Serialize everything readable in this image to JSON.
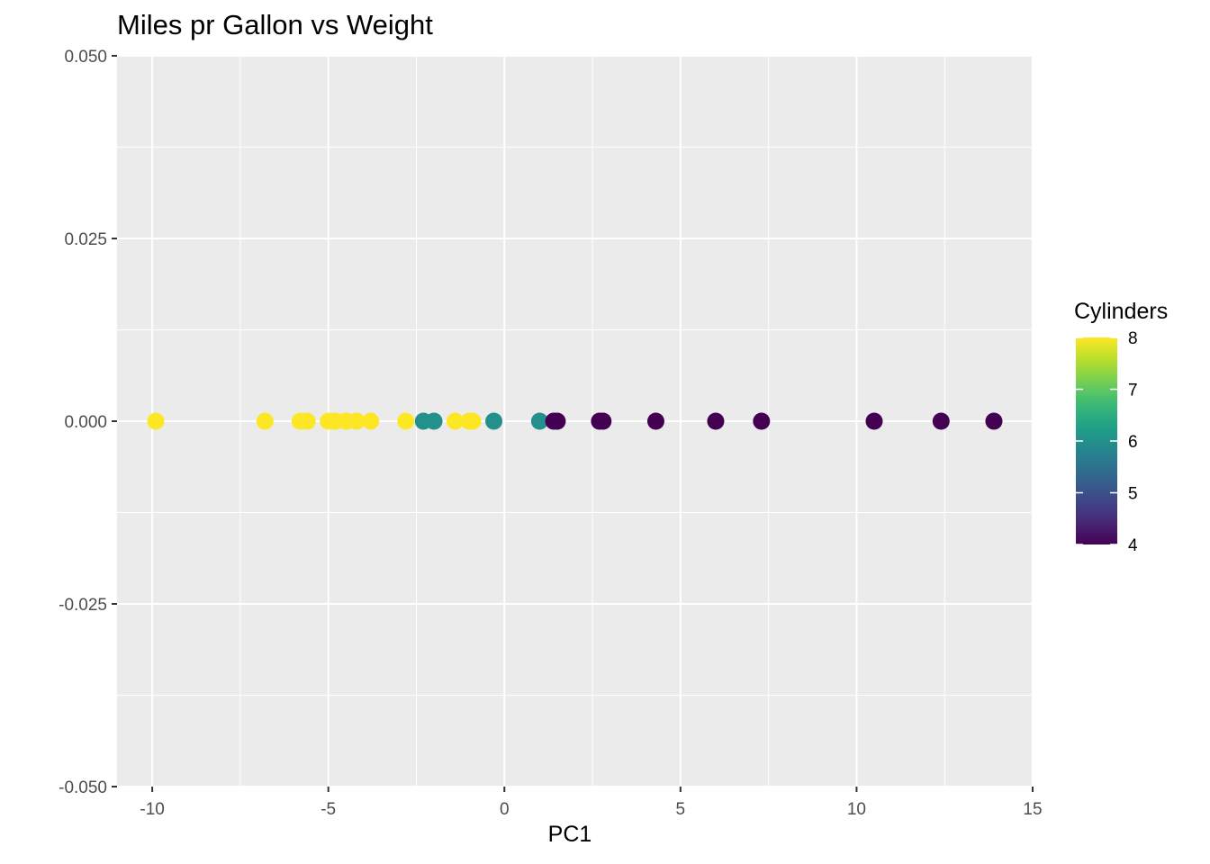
{
  "chart_data": {
    "type": "scatter",
    "title": "Miles pr Gallon vs Weight",
    "xlabel": "PC1",
    "ylabel": "",
    "xlim": [
      -11,
      15
    ],
    "ylim": [
      -0.05,
      0.05
    ],
    "x_ticks": [
      -10,
      -5,
      0,
      5,
      10,
      15
    ],
    "y_ticks": [
      -0.05,
      -0.025,
      0.0,
      0.025,
      0.05
    ],
    "x_tick_labels": [
      "-10",
      "-5",
      "0",
      "5",
      "10",
      "15"
    ],
    "y_tick_labels": [
      "-0.050",
      "-0.025",
      "0.000",
      "0.025",
      "0.050"
    ],
    "grid": true,
    "background": "#ebebeb",
    "legend": {
      "title": "Cylinders",
      "type": "colorbar",
      "placement": "right",
      "min": 4,
      "max": 8,
      "ticks": [
        4,
        5,
        6,
        7,
        8
      ],
      "tick_labels": [
        "4",
        "5",
        "6",
        "7",
        "8"
      ],
      "colors": [
        "#440154",
        "#3b528b",
        "#21908c",
        "#5dc863",
        "#fde725"
      ]
    },
    "points": [
      {
        "x": -9.9,
        "y": 0,
        "cyl": 8
      },
      {
        "x": -6.8,
        "y": 0,
        "cyl": 8
      },
      {
        "x": -5.8,
        "y": 0,
        "cyl": 8
      },
      {
        "x": -5.6,
        "y": 0,
        "cyl": 8
      },
      {
        "x": -5.0,
        "y": 0,
        "cyl": 8
      },
      {
        "x": -4.8,
        "y": 0,
        "cyl": 8
      },
      {
        "x": -4.5,
        "y": 0,
        "cyl": 8
      },
      {
        "x": -4.2,
        "y": 0,
        "cyl": 8
      },
      {
        "x": -3.8,
        "y": 0,
        "cyl": 8
      },
      {
        "x": -2.8,
        "y": 0,
        "cyl": 8
      },
      {
        "x": -2.3,
        "y": 0,
        "cyl": 6
      },
      {
        "x": -2.0,
        "y": 0,
        "cyl": 6
      },
      {
        "x": -1.4,
        "y": 0,
        "cyl": 8
      },
      {
        "x": -1.0,
        "y": 0,
        "cyl": 8
      },
      {
        "x": -0.9,
        "y": 0,
        "cyl": 8
      },
      {
        "x": -0.3,
        "y": 0,
        "cyl": 6
      },
      {
        "x": 1.0,
        "y": 0,
        "cyl": 6
      },
      {
        "x": 1.4,
        "y": 0,
        "cyl": 4
      },
      {
        "x": 1.5,
        "y": 0,
        "cyl": 4
      },
      {
        "x": 2.7,
        "y": 0,
        "cyl": 4
      },
      {
        "x": 2.8,
        "y": 0,
        "cyl": 4
      },
      {
        "x": 4.3,
        "y": 0,
        "cyl": 4
      },
      {
        "x": 6.0,
        "y": 0,
        "cyl": 4
      },
      {
        "x": 7.3,
        "y": 0,
        "cyl": 4
      },
      {
        "x": 10.5,
        "y": 0,
        "cyl": 4
      },
      {
        "x": 12.4,
        "y": 0,
        "cyl": 4
      },
      {
        "x": 13.9,
        "y": 0,
        "cyl": 4
      }
    ]
  }
}
